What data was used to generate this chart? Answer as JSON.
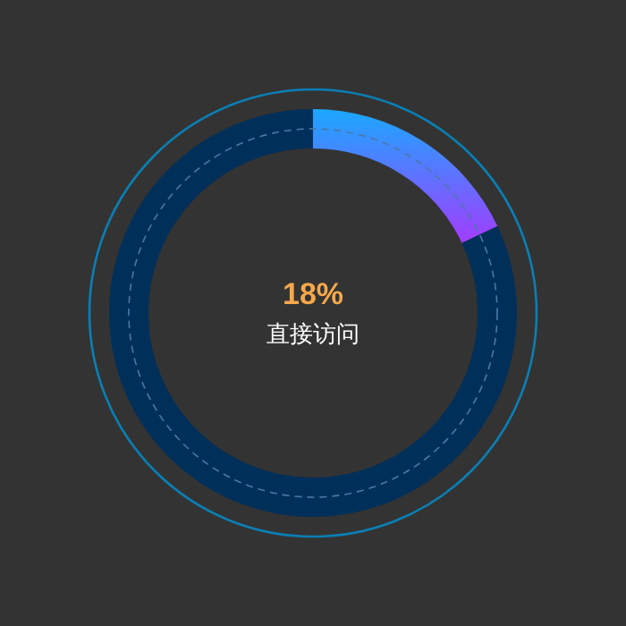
{
  "chart_data": {
    "type": "donut",
    "categories": [
      "直接访问",
      null
    ],
    "values": [
      18,
      82
    ],
    "colors": [
      "#1aa8ff",
      "#00305a"
    ],
    "value_labels": [
      "18%",
      null
    ]
  }
}
